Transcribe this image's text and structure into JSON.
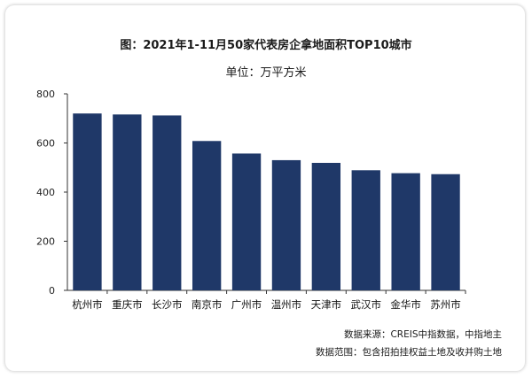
{
  "title": "图：2021年1-11月50家代表房企拿地面积TOP10城市",
  "subtitle": "单位：万平方米",
  "source_note": "数据来源：CREIS中指数据，中指地主",
  "scope_note": "数据范围：包含招拍挂权益土地及收并购土地",
  "colors": {
    "bar": "#1f3868",
    "axis": "#333333"
  },
  "chart_data": {
    "type": "bar",
    "title": "图：2021年1-11月50家代表房企拿地面积TOP10城市",
    "ylabel": "单位：万平方米",
    "xlabel": "",
    "categories": [
      "杭州市",
      "重庆市",
      "长沙市",
      "南京市",
      "广州市",
      "温州市",
      "天津市",
      "武汉市",
      "金华市",
      "苏州市"
    ],
    "values": [
      720,
      716,
      712,
      608,
      557,
      530,
      519,
      489,
      477,
      473
    ],
    "ylim": [
      0,
      800
    ],
    "yticks": [
      0,
      200,
      400,
      600,
      800
    ],
    "grid": false,
    "legend": "none"
  }
}
